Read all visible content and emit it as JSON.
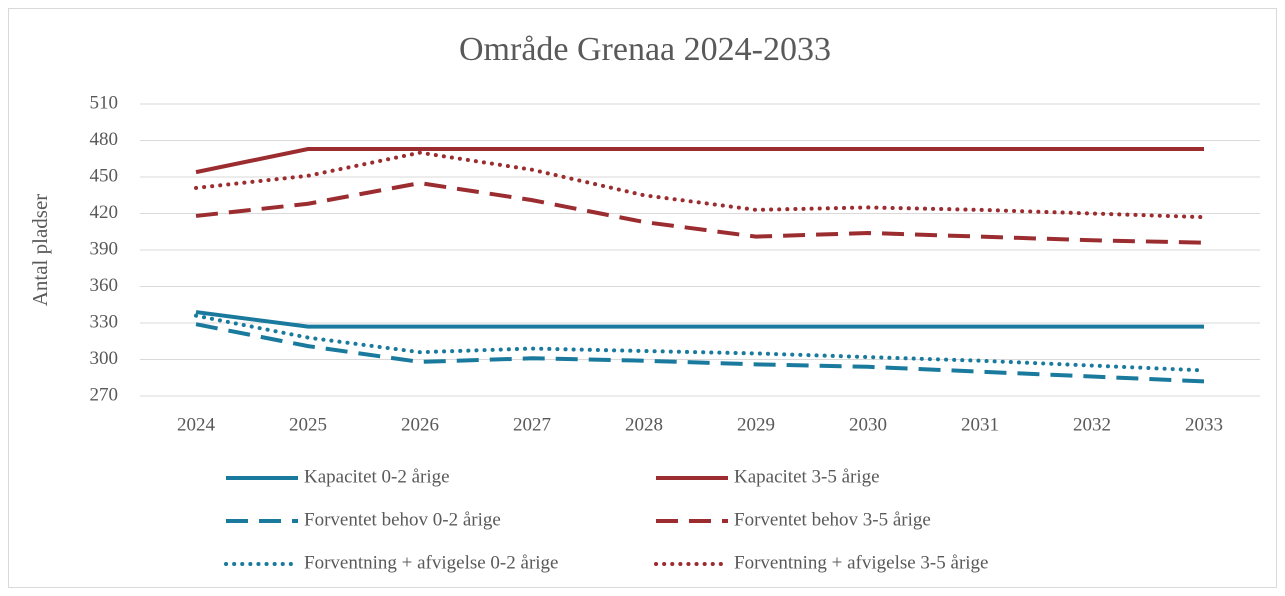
{
  "chart_data": {
    "type": "line",
    "title": "Område Grenaa 2024-2033",
    "y_label": "Antal pladser",
    "categories": [
      "2024",
      "2025",
      "2026",
      "2027",
      "2028",
      "2029",
      "2030",
      "2031",
      "2032",
      "2033"
    ],
    "ylim": [
      270,
      510
    ],
    "yticks": [
      270,
      300,
      330,
      360,
      390,
      420,
      450,
      480,
      510
    ],
    "grid": true,
    "legend": "bottom",
    "series": [
      {
        "name": "Kapacitet 0-2 årige",
        "color": "#1a7a9e",
        "dash": "solid",
        "values": [
          339,
          327,
          327,
          327,
          327,
          327,
          327,
          327,
          327,
          327
        ]
      },
      {
        "name": "Kapacitet 3-5 årige",
        "color": "#9b2d30",
        "dash": "solid",
        "values": [
          454,
          473,
          473,
          473,
          473,
          473,
          473,
          473,
          473,
          473
        ]
      },
      {
        "name": "Forventet behov 0-2 årige",
        "color": "#1a7a9e",
        "dash": "dashed",
        "values": [
          329,
          311,
          298,
          301,
          299,
          296,
          294,
          290,
          286,
          282
        ]
      },
      {
        "name": "Forventet behov 3-5 årige",
        "color": "#9b2d30",
        "dash": "dashed",
        "values": [
          418,
          428,
          445,
          431,
          413,
          401,
          404,
          401,
          398,
          396
        ]
      },
      {
        "name": "Forventning + afvigelse 0-2 årige",
        "color": "#1a7a9e",
        "dash": "dotted",
        "values": [
          336,
          318,
          306,
          309,
          307,
          305,
          302,
          299,
          295,
          291
        ]
      },
      {
        "name": "Forventning + afvigelse 3-5 årige",
        "color": "#9b2d30",
        "dash": "dotted",
        "values": [
          441,
          451,
          470,
          456,
          435,
          423,
          425,
          423,
          420,
          417
        ]
      }
    ]
  }
}
